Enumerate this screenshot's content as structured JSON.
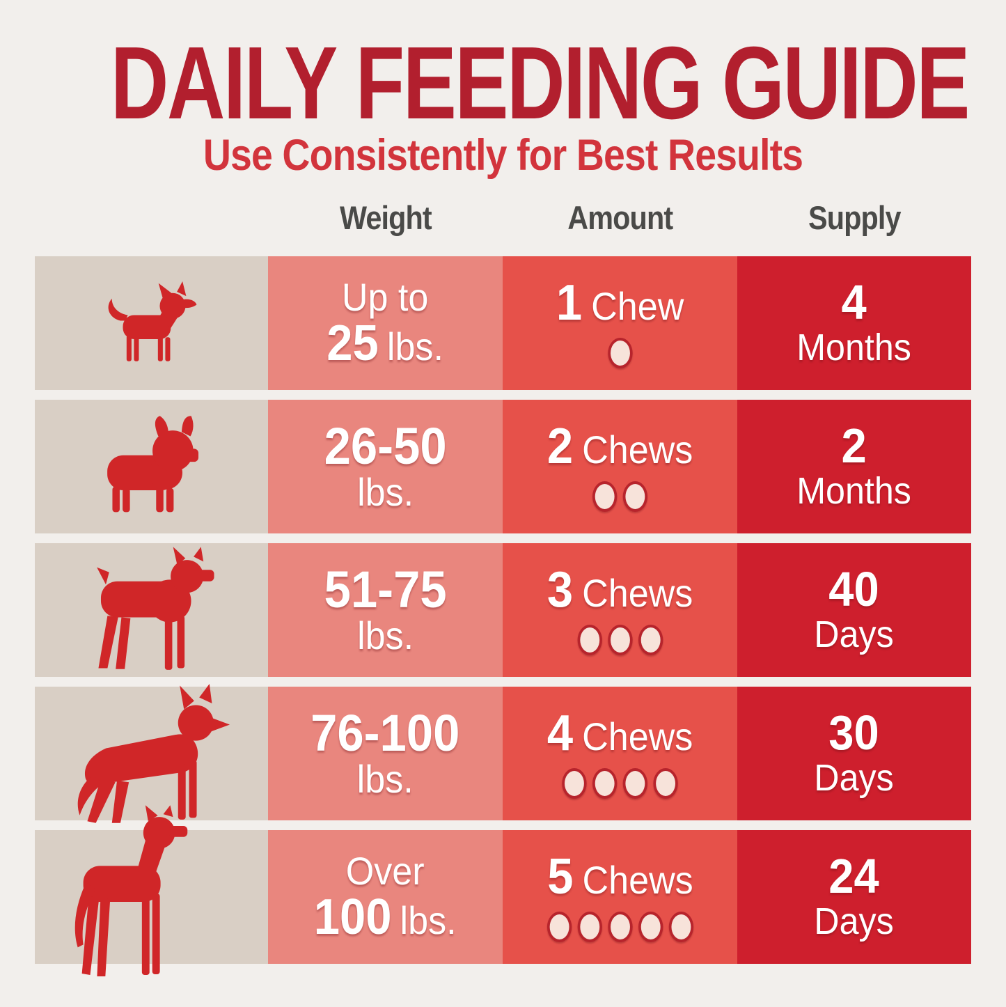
{
  "title": "DAILY FEEDING GUIDE",
  "subtitle": "Use Consistently for Best Results",
  "columns": {
    "weight": "Weight",
    "amount": "Amount",
    "supply": "Supply"
  },
  "colors": {
    "background": "#f2efec",
    "title_text": "#b21f2e",
    "subtitle_text": "#d2343c",
    "column_header_text": "#4a4a48",
    "dog_cell_bg": "#d9cfc5",
    "weight_cell_bg": "#e9867e",
    "amount_cell_bg": "#e6514a",
    "supply_cell_bg": "#ce1f2d",
    "dog_silhouette": "#d02628",
    "chew_dot_fill": "#f7e3da",
    "chew_dot_ring": "#b7242c",
    "cell_text": "#ffffff"
  },
  "rows": [
    {
      "dog": "chihuahua",
      "weight_pre": "Up to",
      "weight_num": "25",
      "weight_unit": "lbs.",
      "amount_num": "1",
      "amount_label": "Chew",
      "chew_count": 1,
      "supply_num": "4",
      "supply_unit": "Months"
    },
    {
      "dog": "french-bulldog",
      "weight_num": "26-50",
      "weight_unit": "lbs.",
      "amount_num": "2",
      "amount_label": "Chews",
      "chew_count": 2,
      "supply_num": "2",
      "supply_unit": "Months"
    },
    {
      "dog": "boxer",
      "weight_num": "51-75",
      "weight_unit": "lbs.",
      "amount_num": "3",
      "amount_label": "Chews",
      "chew_count": 3,
      "supply_num": "40",
      "supply_unit": "Days"
    },
    {
      "dog": "german-shepherd",
      "weight_num": "76-100",
      "weight_unit": "lbs.",
      "amount_num": "4",
      "amount_label": "Chews",
      "chew_count": 4,
      "supply_num": "30",
      "supply_unit": "Days"
    },
    {
      "dog": "great-dane",
      "weight_pre": "Over",
      "weight_num": "100",
      "weight_unit": "lbs.",
      "amount_num": "5",
      "amount_label": "Chews",
      "chew_count": 5,
      "supply_num": "24",
      "supply_unit": "Days"
    }
  ],
  "chart_data": {
    "type": "table",
    "title": "DAILY FEEDING GUIDE",
    "subtitle": "Use Consistently for Best Results",
    "columns": [
      "Weight",
      "Amount",
      "Supply"
    ],
    "rows": [
      [
        "Up to 25 lbs.",
        "1 Chew",
        "4 Months"
      ],
      [
        "26-50 lbs.",
        "2 Chews",
        "2 Months"
      ],
      [
        "51-75 lbs.",
        "3 Chews",
        "40 Days"
      ],
      [
        "76-100 lbs.",
        "4 Chews",
        "30 Days"
      ],
      [
        "Over 100 lbs.",
        "5 Chews",
        "24 Days"
      ]
    ]
  }
}
